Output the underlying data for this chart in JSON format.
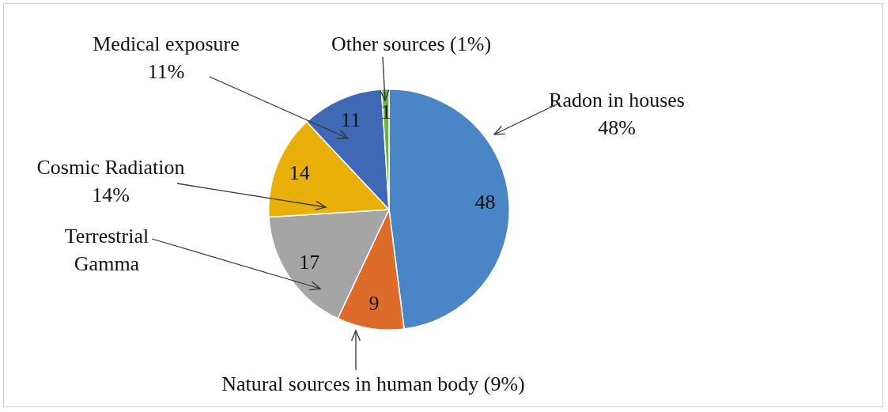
{
  "chart_data": {
    "type": "pie",
    "categories": [
      "Radon in houses\n48%",
      "Natural sources in human body (9%)",
      "Terrestrial\nGamma",
      "Cosmic Radiation\n14%",
      "Medical exposure\n11%",
      "Other sources (1%)"
    ],
    "values": [
      48,
      9,
      17,
      14,
      11,
      1
    ],
    "colors": [
      "#4a86c6",
      "#dd6c2b",
      "#a5a5a5",
      "#e9b00a",
      "#3f68b5",
      "#6fb04f"
    ],
    "data_labels": true,
    "legend": false
  }
}
